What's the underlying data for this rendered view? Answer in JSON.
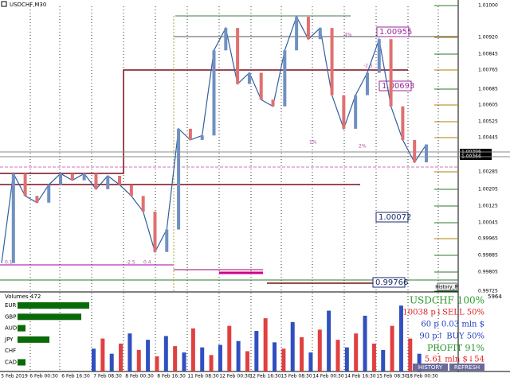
{
  "window": {
    "title": "USDCHF,M30"
  },
  "price_axis": [
    "1.01000",
    "1.00920",
    "1.00845",
    "1.00765",
    "1.00685",
    "1.00605",
    "1.00525",
    "1.00445",
    "1.00285",
    "1.00205",
    "1.00125",
    "1.00045",
    "0.99965",
    "0.99885",
    "0.99805",
    "0.99725"
  ],
  "current_prices": [
    "1.00396",
    "1.00366"
  ],
  "level_labels": [
    "1.00955",
    "1.00693",
    "1.00072",
    "0.99766"
  ],
  "small_labels": [
    "4%",
    "-2.5",
    "1%",
    "2%",
    "0.1",
    "-2.5",
    "0.4"
  ],
  "time_axis": [
    "5 Feb 2019",
    "6 Feb 00:30",
    "6 Feb 16:30",
    "7 Feb 08:30",
    "8 Feb 00:30",
    "8 Feb 16:30",
    "11 Feb 08:30",
    "12 Feb 00:30",
    "12 Feb 16:30",
    "13 Feb 08:30",
    "14 Feb 00:30",
    "14 Feb 16:30",
    "15 Feb 08:30",
    "18 Feb 00:30"
  ],
  "price": [
    0.9985,
    1.0025,
    1.0015,
    1.0012,
    1.002,
    1.0025,
    1.0022,
    1.0025,
    1.0018,
    1.0024,
    1.002,
    1.0015,
    1.0008,
    0.999,
    1.0,
    1.0045,
    1.004,
    1.0042,
    1.008,
    1.009,
    1.0065,
    1.007,
    1.0058,
    1.0055,
    1.008,
    1.0095,
    1.0085,
    1.009,
    1.006,
    1.0045,
    1.006,
    1.007,
    1.0085,
    1.0055,
    1.004,
    1.003,
    1.0038
  ],
  "volume_panel": {
    "label": "Volumes 472",
    "axis_top": "5964"
  },
  "volume": [
    1800,
    2600,
    1400,
    2200,
    3000,
    1700,
    2500,
    1200,
    2800,
    2000,
    1500,
    3400,
    1900,
    1300,
    2100,
    3600,
    2400,
    1600,
    3200,
    4200,
    2300,
    1800,
    3900,
    2700,
    1500,
    3300,
    4800,
    2500,
    1900,
    3000,
    4400,
    2200,
    1700,
    3600,
    5200,
    2600,
    1400
  ],
  "strength": {
    "names": [
      "EUR",
      "GBP",
      "AUD",
      "JPY",
      "CHF",
      "CAD"
    ],
    "values": [
      90,
      80,
      10,
      40,
      0,
      10
    ]
  },
  "panel": {
    "symbol": "USDCHF 100%",
    "sell": "10038 p↓SELL 50%",
    "lots1": "60 p    0.03 mln $",
    "buy": "90 p↑ BUY 50%",
    "profit": "PROFIT 91%",
    "lots2": "5.61 mln $↓54",
    "history_m": "History_M",
    "buttons": [
      "HISTORY",
      "REFRESH"
    ]
  }
}
